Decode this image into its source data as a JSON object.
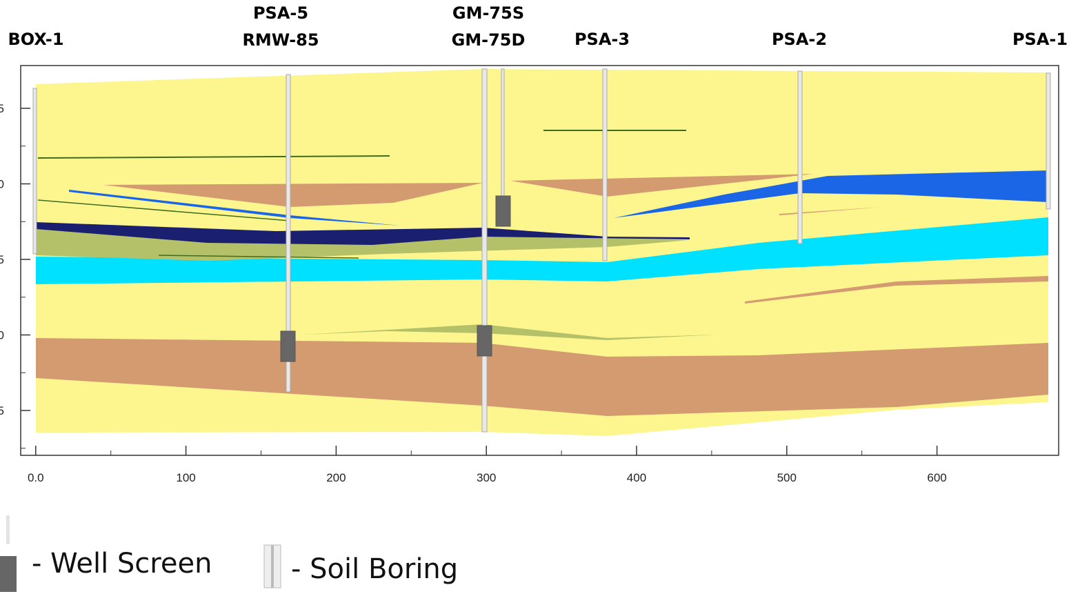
{
  "well_labels": [
    {
      "lines": [
        "BOX-1"
      ]
    },
    {
      "lines": [
        "PSA-5",
        "RMW-85"
      ]
    },
    {
      "lines": [
        "GM-75S",
        "GM-75D"
      ]
    },
    {
      "lines": [
        "PSA-3"
      ]
    },
    {
      "lines": [
        "PSA-2"
      ]
    },
    {
      "lines": [
        "PSA-1"
      ]
    }
  ],
  "x_axis": {
    "xlim": [
      -10,
      681
    ],
    "xticks": [
      {
        "value": 0,
        "label": "0.0"
      },
      100,
      200,
      300,
      400,
      500,
      600
    ]
  },
  "y_axis_labels": [
    "5",
    "0",
    "5",
    "0",
    "5"
  ],
  "legend": {
    "well_screen": "- Well Screen",
    "soil_boring": "- Soil Boring"
  }
}
